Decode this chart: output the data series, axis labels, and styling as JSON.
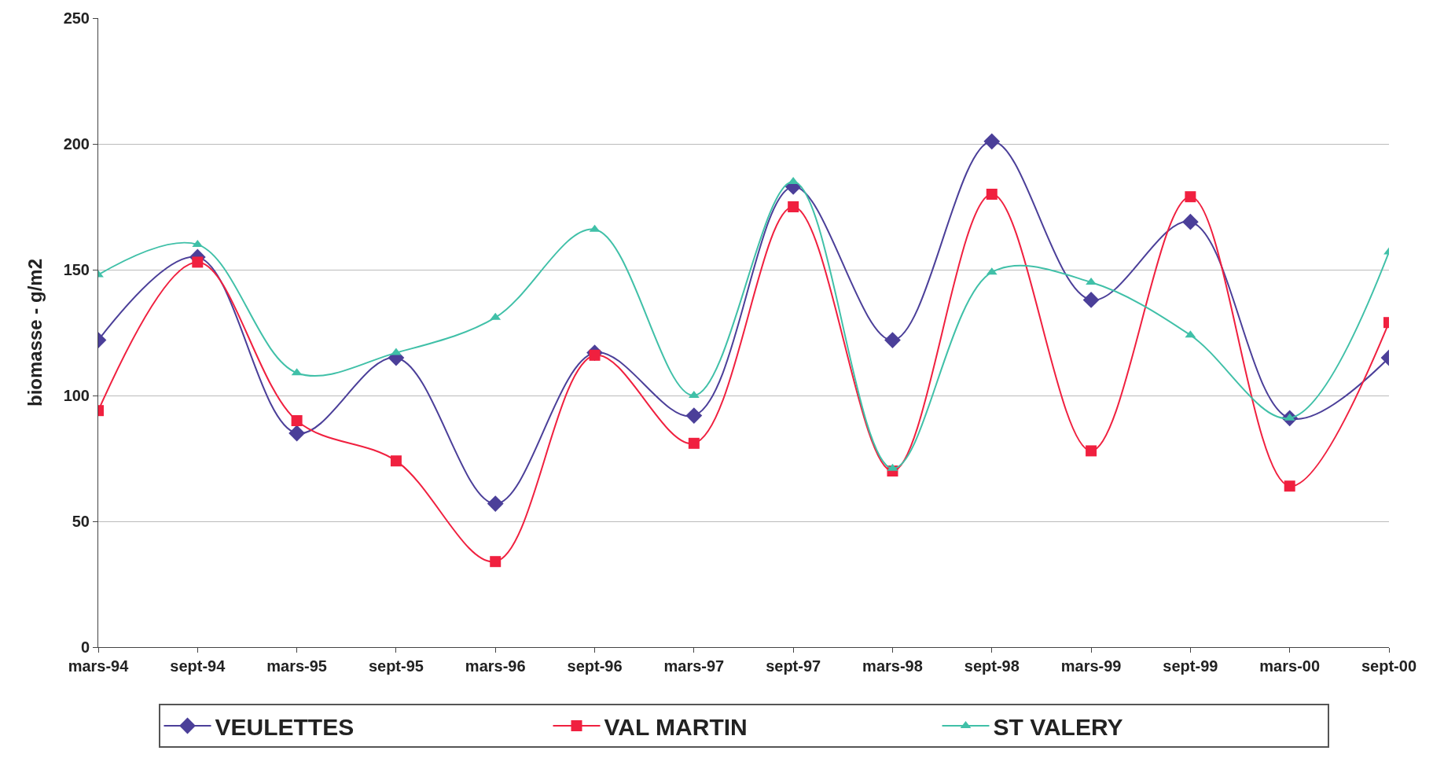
{
  "chart_data": {
    "type": "line",
    "ylabel": "biomasse - g/m2",
    "categories": [
      "mars-94",
      "sept-94",
      "mars-95",
      "sept-95",
      "mars-96",
      "sept-96",
      "mars-97",
      "sept-97",
      "mars-98",
      "sept-98",
      "mars-99",
      "sept-99",
      "mars-00",
      "sept-00"
    ],
    "series": [
      {
        "name": "VEULETTES",
        "color": "#4b3f99",
        "marker": "diamond",
        "values": [
          122,
          155,
          85,
          115,
          57,
          117,
          92,
          183,
          122,
          201,
          138,
          169,
          91,
          115
        ]
      },
      {
        "name": "VAL MARTIN",
        "color": "#f0203f",
        "marker": "square",
        "values": [
          94,
          153,
          90,
          74,
          34,
          116,
          81,
          175,
          70,
          180,
          78,
          179,
          64,
          129
        ]
      },
      {
        "name": "ST VALERY",
        "color": "#40c0a8",
        "marker": "triangle",
        "values": [
          148,
          160,
          109,
          117,
          131,
          166,
          100,
          185,
          71,
          149,
          145,
          124,
          91,
          157
        ]
      }
    ],
    "ylim": [
      0,
      250
    ],
    "yticks": [
      0,
      50,
      100,
      150,
      200,
      250
    ],
    "grid": "y",
    "legend": "bottom",
    "line_style": "solid"
  }
}
